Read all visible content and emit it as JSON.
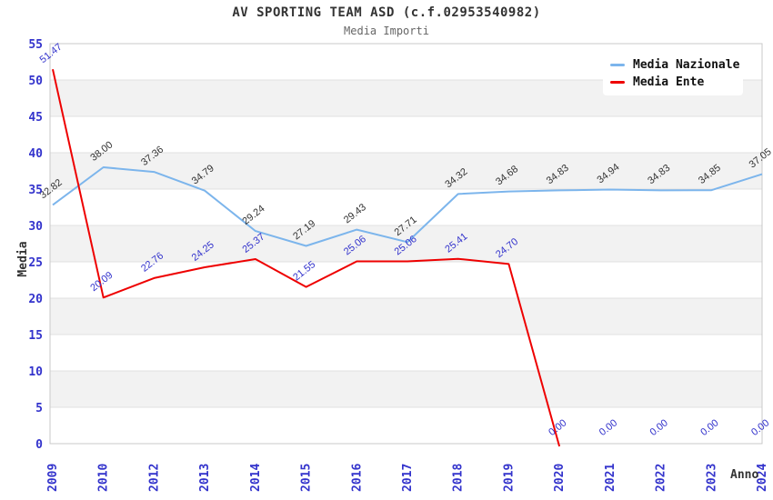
{
  "chart": {
    "title": "AV SPORTING TEAM ASD (c.f.02953540982)",
    "subtitle": "Media Importi",
    "xlabel": "Anno",
    "ylabel": "Media"
  },
  "chart_data": {
    "type": "line",
    "title": "AV SPORTING TEAM ASD (c.f.02953540982)",
    "subtitle": "Media Importi",
    "xlabel": "Anno",
    "ylabel": "Media",
    "categories": [
      "2009",
      "2010",
      "2012",
      "2013",
      "2014",
      "2015",
      "2016",
      "2017",
      "2018",
      "2019",
      "2020",
      "2021",
      "2022",
      "2023",
      "2024"
    ],
    "series": [
      {
        "name": "Media Nazionale",
        "color": "#7cb5ec",
        "label_color": "#333333",
        "values": [
          32.82,
          38.0,
          37.36,
          34.79,
          29.24,
          27.19,
          29.43,
          27.71,
          34.32,
          34.68,
          34.83,
          34.94,
          34.83,
          34.85,
          37.05
        ]
      },
      {
        "name": "Media Ente",
        "color": "#ee0000",
        "label_color": "#3333cc",
        "values": [
          51.47,
          20.09,
          22.76,
          24.25,
          25.37,
          21.55,
          25.06,
          25.06,
          25.41,
          24.7,
          0.0,
          0.0,
          0.0,
          0.0,
          0.0
        ]
      }
    ],
    "ylim": [
      0,
      55
    ],
    "ytick_step": 5,
    "grid": true,
    "alternate_bands": true,
    "legend_position": "top-right",
    "label_decimals": 2
  },
  "colors": {
    "band": "#f2f2f2",
    "grid": "#e0e0e0",
    "border": "#c9c9c9",
    "axis_label": "#3333cc",
    "title": "#333333",
    "subtitle": "#666666"
  }
}
